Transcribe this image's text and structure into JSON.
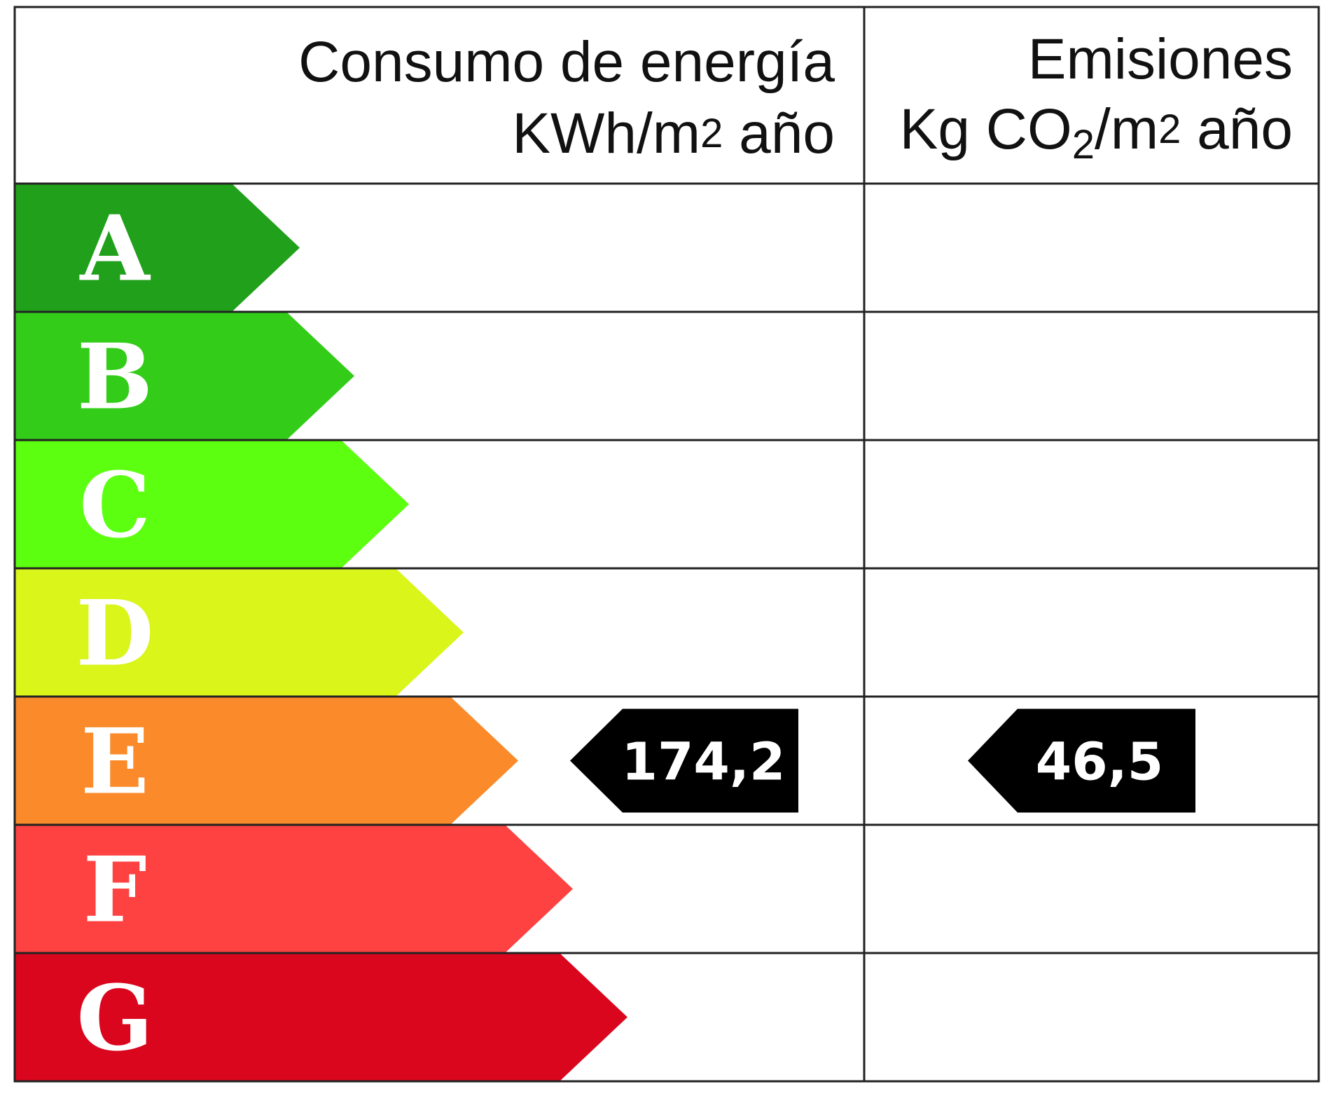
{
  "header": {
    "energy_title": "Consumo de energía",
    "energy_unit": [
      "KWh/m",
      "2",
      " año"
    ],
    "emissions_title": "Emisiones",
    "emissions_unit": [
      "Kg CO",
      "2",
      "/m",
      "2",
      " año"
    ]
  },
  "classes": [
    {
      "letter": "A",
      "color": "#21a01b"
    },
    {
      "letter": "B",
      "color": "#33cc19"
    },
    {
      "letter": "C",
      "color": "#5cff0f"
    },
    {
      "letter": "D",
      "color": "#d9f51a"
    },
    {
      "letter": "E",
      "color": "#fa8a2a",
      "energy": "174,2",
      "emissions": "46,5"
    },
    {
      "letter": "F",
      "color": "#fe4242"
    },
    {
      "letter": "G",
      "color": "#d9061e"
    }
  ]
}
